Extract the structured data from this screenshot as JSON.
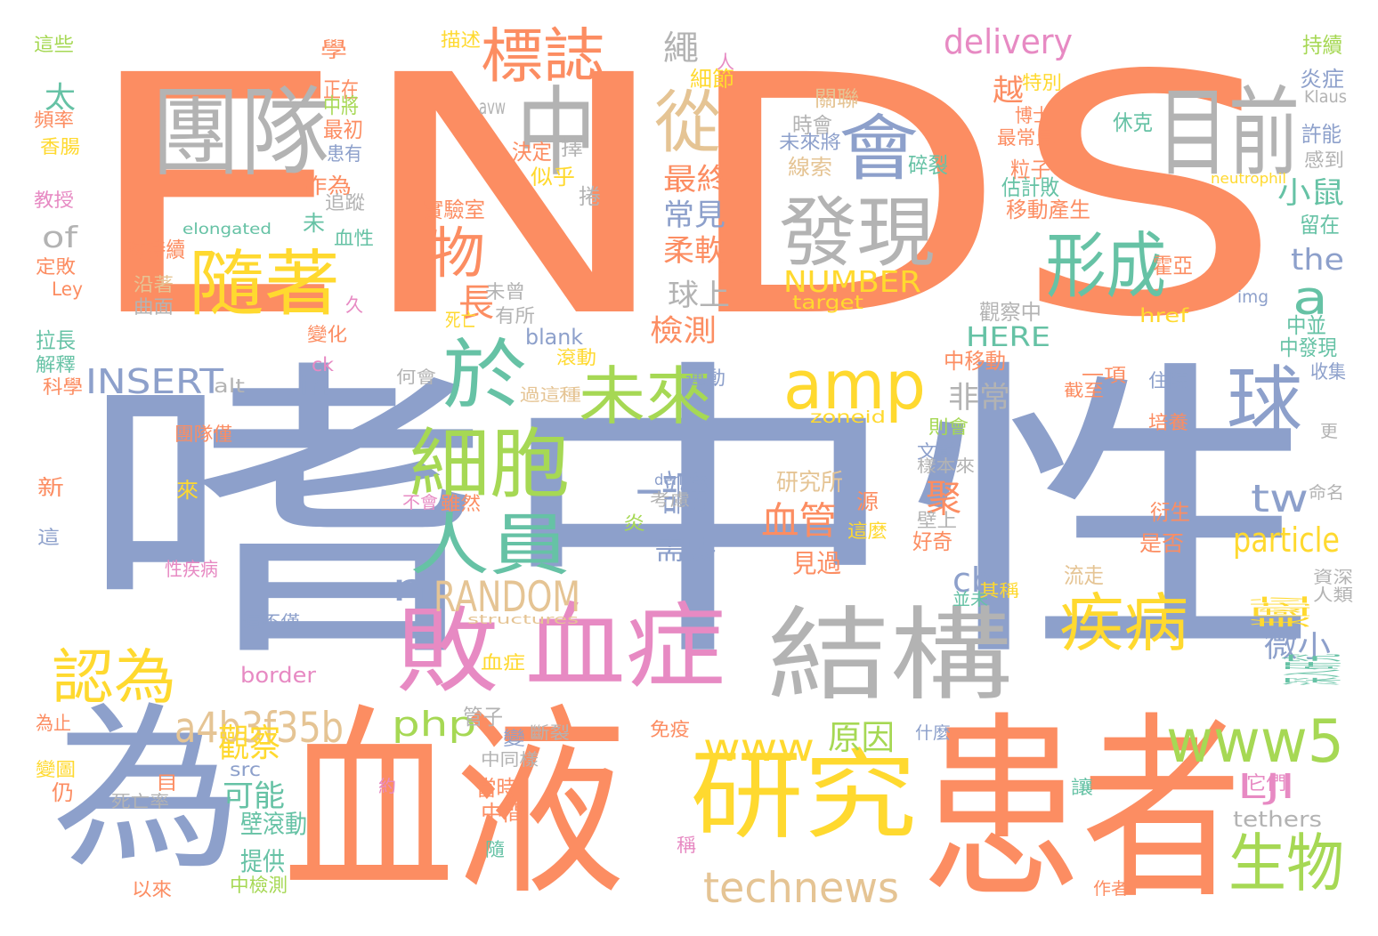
{
  "colors": {
    "orange": "#fc8d62",
    "blue": "#8da0cb",
    "green": "#66c2a5",
    "pink": "#e78ac3",
    "lime": "#a6d854",
    "yellow": "#ffd92f",
    "tan": "#e5c494",
    "gray": "#b3b3b3"
  },
  "words": [
    {
      "t": "ENDS",
      "c": "orange"
    },
    {
      "t": "嗜中性",
      "c": "blue"
    },
    {
      "t": "為",
      "c": "blue"
    },
    {
      "t": "血液",
      "c": "orange"
    },
    {
      "t": "患者",
      "c": "orange"
    },
    {
      "t": "研究",
      "c": "yellow"
    },
    {
      "t": "團隊",
      "c": "gray"
    },
    {
      "t": "中",
      "c": "gray"
    },
    {
      "t": "目前",
      "c": "gray"
    },
    {
      "t": "標誌",
      "c": "orange"
    },
    {
      "t": "從",
      "c": "tan"
    },
    {
      "t": "會",
      "c": "blue"
    },
    {
      "t": "發現",
      "c": "gray"
    },
    {
      "t": "形成",
      "c": "green"
    },
    {
      "t": "隨著",
      "c": "yellow"
    },
    {
      "t": "物",
      "c": "orange"
    },
    {
      "t": "於",
      "c": "green"
    },
    {
      "t": "amp",
      "c": "yellow"
    },
    {
      "t": "a",
      "c": "green"
    },
    {
      "t": "未來",
      "c": "lime"
    },
    {
      "t": "球",
      "c": "blue"
    },
    {
      "t": "細胞",
      "c": "lime"
    },
    {
      "t": "人員",
      "c": "green"
    },
    {
      "t": "敗",
      "c": "pink"
    },
    {
      "t": "血症",
      "c": "pink"
    },
    {
      "t": "結構",
      "c": "gray"
    },
    {
      "t": "疾病",
      "c": "yellow"
    },
    {
      "t": "認為",
      "c": "yellow"
    },
    {
      "t": "www5",
      "c": "lime"
    },
    {
      "t": "www",
      "c": "yellow"
    },
    {
      "t": "生物",
      "c": "lime"
    },
    {
      "t": "technews",
      "c": "tan"
    },
    {
      "t": "delivery",
      "c": "pink"
    },
    {
      "t": "繩",
      "c": "gray"
    },
    {
      "t": "最終",
      "c": "orange"
    },
    {
      "t": "常見",
      "c": "blue"
    },
    {
      "t": "柔軟",
      "c": "orange"
    },
    {
      "t": "球上",
      "c": "gray"
    },
    {
      "t": "檢測",
      "c": "orange"
    },
    {
      "t": "越",
      "c": "orange"
    },
    {
      "t": "the",
      "c": "blue"
    },
    {
      "t": "NUMBER",
      "c": "yellow"
    },
    {
      "t": "target",
      "c": "yellow"
    },
    {
      "t": "HERE",
      "c": "green"
    },
    {
      "t": "INSERT",
      "c": "blue"
    },
    {
      "t": "of",
      "c": "gray"
    },
    {
      "t": "太",
      "c": "green"
    },
    {
      "t": "小鼠",
      "c": "green"
    },
    {
      "t": "tw",
      "c": "blue"
    },
    {
      "t": "particle",
      "c": "yellow"
    },
    {
      "t": "一部分",
      "c": "blue"
    },
    {
      "t": "需要",
      "c": "blue"
    },
    {
      "t": "血管",
      "c": "orange"
    },
    {
      "t": "見過",
      "c": "orange"
    },
    {
      "t": "研究所",
      "c": "tan"
    },
    {
      "t": "RANDOM",
      "c": "tan"
    },
    {
      "t": "n",
      "c": "blue"
    },
    {
      "t": "cb",
      "c": "blue"
    },
    {
      "t": "a4b3f35b",
      "c": "tan"
    },
    {
      "t": "php",
      "c": "lime"
    },
    {
      "t": "觀察",
      "c": "yellow"
    },
    {
      "t": "原因",
      "c": "lime"
    },
    {
      "t": "可能",
      "c": "green"
    },
    {
      "t": "壁滾動",
      "c": "green"
    },
    {
      "t": "提供",
      "c": "green"
    },
    {
      "t": "微小",
      "c": "blue"
    },
    {
      "t": "深入研究",
      "c": "green"
    },
    {
      "t": "美國拉",
      "c": "yellow"
    },
    {
      "t": "LJI",
      "c": "pink"
    },
    {
      "t": "非常",
      "c": "gray"
    },
    {
      "t": "聚",
      "c": "orange"
    },
    {
      "t": "長",
      "c": "orange"
    },
    {
      "t": "in",
      "c": "blue"
    },
    {
      "t": "border",
      "c": "pink"
    },
    {
      "t": "structures",
      "c": "tan"
    },
    {
      "t": "blank",
      "c": "blue"
    },
    {
      "t": "zoneid",
      "c": "yellow"
    },
    {
      "t": "derived",
      "c": "blue"
    },
    {
      "t": "img",
      "c": "blue"
    },
    {
      "t": "href",
      "c": "yellow"
    },
    {
      "t": "neutrophil",
      "c": "yellow"
    },
    {
      "t": "elongated",
      "c": "green"
    },
    {
      "t": "tethers",
      "c": "gray"
    },
    {
      "t": "avw",
      "c": "gray"
    },
    {
      "t": "ck",
      "c": "pink"
    },
    {
      "t": "alt",
      "c": "gray"
    },
    {
      "t": "src",
      "c": "blue"
    },
    {
      "t": "Klaus",
      "c": "gray"
    },
    {
      "t": "Ley",
      "c": "orange"
    },
    {
      "t": "描述",
      "c": "yellow"
    },
    {
      "t": "學",
      "c": "orange"
    },
    {
      "t": "正在",
      "c": "orange"
    },
    {
      "t": "中將",
      "c": "lime"
    },
    {
      "t": "最初",
      "c": "orange"
    },
    {
      "t": "患有",
      "c": "blue"
    },
    {
      "t": "作為",
      "c": "orange"
    },
    {
      "t": "追蹤",
      "c": "gray"
    },
    {
      "t": "決定",
      "c": "orange"
    },
    {
      "t": "似乎",
      "c": "yellow"
    },
    {
      "t": "實驗室",
      "c": "orange"
    },
    {
      "t": "持續",
      "c": "lime"
    },
    {
      "t": "炎症",
      "c": "blue"
    },
    {
      "t": "許能",
      "c": "blue"
    },
    {
      "t": "感到",
      "c": "gray"
    },
    {
      "t": "留在",
      "c": "green"
    },
    {
      "t": "中並",
      "c": "green"
    },
    {
      "t": "中發現",
      "c": "green"
    },
    {
      "t": "收集",
      "c": "blue"
    },
    {
      "t": "特別",
      "c": "yellow"
    },
    {
      "t": "博士",
      "c": "orange"
    },
    {
      "t": "最常見",
      "c": "orange"
    },
    {
      "t": "粒子",
      "c": "orange"
    },
    {
      "t": "估計敗",
      "c": "green"
    },
    {
      "t": "移動產生",
      "c": "orange"
    },
    {
      "t": "霍亞",
      "c": "orange"
    },
    {
      "t": "觀察中",
      "c": "gray"
    },
    {
      "t": "中移動",
      "c": "orange"
    },
    {
      "t": "時會",
      "c": "gray"
    },
    {
      "t": "碎裂",
      "c": "green"
    },
    {
      "t": "未來將",
      "c": "blue"
    },
    {
      "t": "線索",
      "c": "tan"
    },
    {
      "t": "關聯",
      "c": "tan"
    },
    {
      "t": "細節",
      "c": "yellow"
    },
    {
      "t": "人",
      "c": "pink"
    },
    {
      "t": "休克",
      "c": "green"
    },
    {
      "t": "這些",
      "c": "lime"
    },
    {
      "t": "頻率",
      "c": "orange"
    },
    {
      "t": "香腸",
      "c": "yellow"
    },
    {
      "t": "教授",
      "c": "pink"
    },
    {
      "t": "定敗",
      "c": "orange"
    },
    {
      "t": "拉長",
      "c": "green"
    },
    {
      "t": "解釋",
      "c": "green"
    },
    {
      "t": "科學",
      "c": "orange"
    },
    {
      "t": "球持續",
      "c": "orange"
    },
    {
      "t": "沿著",
      "c": "tan"
    },
    {
      "t": "曲面",
      "c": "gray"
    },
    {
      "t": "未曾",
      "c": "gray"
    },
    {
      "t": "死亡",
      "c": "yellow"
    },
    {
      "t": "有所",
      "c": "gray"
    },
    {
      "t": "血性",
      "c": "green"
    },
    {
      "t": "變化",
      "c": "orange"
    },
    {
      "t": "久",
      "c": "pink"
    },
    {
      "t": "滾動",
      "c": "yellow"
    },
    {
      "t": "何會",
      "c": "gray"
    },
    {
      "t": "運動",
      "c": "blue"
    },
    {
      "t": "過這",
      "c": "tan"
    },
    {
      "t": "種",
      "c": "tan"
    },
    {
      "t": "團隊僅",
      "c": "orange"
    },
    {
      "t": "來",
      "c": "yellow"
    },
    {
      "t": "新",
      "c": "orange"
    },
    {
      "t": "這",
      "c": "blue"
    },
    {
      "t": "不會",
      "c": "pink"
    },
    {
      "t": "雖然",
      "c": "orange"
    },
    {
      "t": "性疾病",
      "c": "pink"
    },
    {
      "t": "這不僅",
      "c": "blue"
    },
    {
      "t": "炎",
      "c": "lime"
    },
    {
      "t": "考慮",
      "c": "gray"
    },
    {
      "t": "源",
      "c": "orange"
    },
    {
      "t": "這麼",
      "c": "yellow"
    },
    {
      "t": "文獻",
      "c": "blue"
    },
    {
      "t": "樣本來",
      "c": "gray"
    },
    {
      "t": "壁上",
      "c": "gray"
    },
    {
      "t": "則會",
      "c": "lime"
    },
    {
      "t": "好奇",
      "c": "orange"
    },
    {
      "t": "培養",
      "c": "orange"
    },
    {
      "t": "衍生",
      "c": "orange"
    },
    {
      "t": "是否",
      "c": "orange"
    },
    {
      "t": "流走",
      "c": "tan"
    },
    {
      "t": "其稱",
      "c": "yellow"
    },
    {
      "t": "並未",
      "c": "green"
    },
    {
      "t": "命名",
      "c": "gray"
    },
    {
      "t": "資深",
      "c": "gray"
    },
    {
      "t": "人類",
      "c": "gray"
    },
    {
      "t": "一項",
      "c": "orange"
    },
    {
      "t": "住院",
      "c": "blue"
    },
    {
      "t": "截至",
      "c": "orange"
    },
    {
      "t": "更",
      "c": "gray"
    },
    {
      "t": "為止",
      "c": "orange"
    },
    {
      "t": "免疫",
      "c": "orange"
    },
    {
      "t": "斷裂",
      "c": "gray"
    },
    {
      "t": "變",
      "c": "blue"
    },
    {
      "t": "管子",
      "c": "gray"
    },
    {
      "t": "中同樣",
      "c": "gray"
    },
    {
      "t": "什麼",
      "c": "blue"
    },
    {
      "t": "約",
      "c": "pink"
    },
    {
      "t": "當時",
      "c": "orange"
    },
    {
      "t": "中間",
      "c": "orange"
    },
    {
      "t": "隨",
      "c": "green"
    },
    {
      "t": "稱",
      "c": "pink"
    },
    {
      "t": "血症",
      "c": "yellow"
    },
    {
      "t": "它們",
      "c": "pink"
    },
    {
      "t": "讓",
      "c": "green"
    },
    {
      "t": "作者",
      "c": "orange"
    },
    {
      "t": "仍",
      "c": "orange"
    },
    {
      "t": "變圖",
      "c": "yellow"
    },
    {
      "t": "死亡率",
      "c": "gray"
    },
    {
      "t": "以來",
      "c": "orange"
    },
    {
      "t": "中檢測",
      "c": "lime"
    },
    {
      "t": "目",
      "c": "orange"
    },
    {
      "t": "未",
      "c": "green"
    },
    {
      "t": "捲",
      "c": "gray"
    },
    {
      "t": "擇",
      "c": "gray"
    }
  ]
}
